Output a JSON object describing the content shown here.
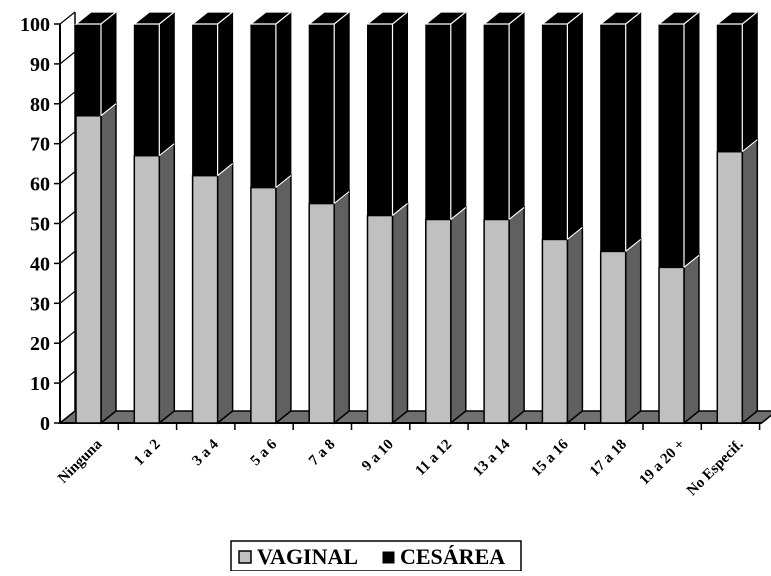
{
  "chart_data": {
    "type": "bar",
    "stacked": true,
    "three_d": true,
    "categories": [
      "Ninguna",
      "1 a 2",
      "3 a 4",
      "5 a 6",
      "7 a 8",
      "9 a 10",
      "11 a 12",
      "13 a 14",
      "15 a 16",
      "17 a 18",
      "19 a 20 +",
      "No Especif."
    ],
    "series": [
      {
        "name": "VAGINAL",
        "values": [
          77,
          67,
          62,
          59,
          55,
          52,
          51,
          51,
          46,
          43,
          39,
          68
        ]
      },
      {
        "name": "CESÁREA",
        "values": [
          23,
          33,
          38,
          41,
          45,
          48,
          49,
          49,
          54,
          57,
          61,
          32
        ]
      }
    ],
    "ylim": [
      0,
      100
    ],
    "yticks": [
      0,
      10,
      20,
      30,
      40,
      50,
      60,
      70,
      80,
      90,
      100
    ],
    "legend_position": "bottom",
    "grid": false
  },
  "colors": {
    "vaginal_front": "#c0c0c0",
    "vaginal_side": "#606060",
    "cesarea_front": "#000000",
    "floor": "#707070"
  }
}
